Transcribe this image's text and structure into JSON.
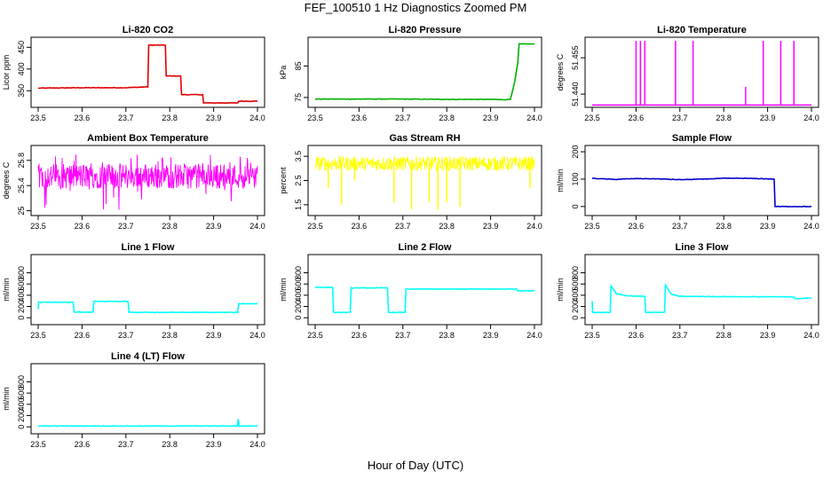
{
  "figure": {
    "title": "FEF_100510  1 Hz Diagnostics Zoomed PM",
    "xlabel": "Hour of Day (UTC)"
  },
  "chart_data": [
    {
      "type": "line",
      "title": "Li-820 CO2",
      "ylabel": "Licor ppm",
      "xlim": [
        23.5,
        24.0
      ],
      "ylim": [
        320,
        465
      ],
      "xticks": [
        23.5,
        23.6,
        23.7,
        23.8,
        23.9,
        24.0
      ],
      "yticks": [
        350,
        400,
        450
      ],
      "color": "#e00000",
      "series": [
        {
          "x": [
            23.5,
            23.6,
            23.7,
            23.75,
            23.752,
            23.79,
            23.792,
            23.825,
            23.827,
            23.875,
            23.877,
            23.955,
            23.957,
            24.0
          ],
          "values": [
            356,
            357,
            357,
            359,
            455,
            455,
            384,
            384,
            341,
            341,
            322,
            322,
            326,
            326
          ]
        }
      ]
    },
    {
      "type": "line",
      "title": "Li-820 Pressure",
      "ylabel": "kPa",
      "xlim": [
        23.5,
        24.0
      ],
      "ylim": [
        73,
        93
      ],
      "xticks": [
        23.5,
        23.6,
        23.7,
        23.8,
        23.9,
        24.0
      ],
      "yticks": [
        75,
        85
      ],
      "color": "#00b000",
      "series": [
        {
          "x": [
            23.5,
            23.6,
            23.7,
            23.8,
            23.9,
            23.93,
            23.945,
            23.955,
            23.962,
            23.965,
            24.0
          ],
          "values": [
            74.5,
            74.5,
            74.5,
            74.4,
            74.4,
            74.3,
            74.4,
            80,
            86,
            92,
            92
          ]
        }
      ]
    },
    {
      "type": "line",
      "title": "Li-820 Temperature",
      "ylabel": "degrees C",
      "xlim": [
        23.5,
        24.0
      ],
      "ylim": [
        51.436,
        51.462
      ],
      "xticks": [
        23.5,
        23.6,
        23.7,
        23.8,
        23.9,
        24.0
      ],
      "yticks": [
        51.44,
        51.455
      ],
      "yticklabels": [
        "51.440",
        "51.455"
      ],
      "color": "#ff00ff",
      "series": [
        {
          "baseline": 51.4355,
          "spikes_x": [
            23.6,
            23.61,
            23.62,
            23.69,
            23.73,
            23.89,
            23.93,
            23.96
          ],
          "spike_top": 51.462,
          "minor_spikes_x": [
            23.85
          ],
          "minor_top": 51.443
        }
      ]
    },
    {
      "type": "line",
      "title": "Ambient Box Temperature",
      "ylabel": "degrees C",
      "xlim": [
        23.5,
        24.0
      ],
      "ylim": [
        24.98,
        25.98
      ],
      "xticks": [
        23.5,
        23.6,
        23.7,
        23.8,
        23.9,
        24.0
      ],
      "yticks": [
        25.0,
        25.4,
        25.8
      ],
      "color": "#ff00ff",
      "series": [
        {
          "mean": 25.5,
          "band_low": 25.35,
          "band_high": 25.75,
          "min": 25.0,
          "max": 25.9
        }
      ]
    },
    {
      "type": "line",
      "title": "Gas Stream RH",
      "ylabel": "percent",
      "xlim": [
        23.5,
        24.0
      ],
      "ylim": [
        1.2,
        3.8
      ],
      "xticks": [
        23.5,
        23.6,
        23.7,
        23.8,
        23.9,
        24.0
      ],
      "yticks": [
        1.5,
        2.5,
        3.5
      ],
      "color": "#ffff00",
      "series": [
        {
          "mean": 3.2,
          "band_low": 2.9,
          "band_high": 3.5,
          "dips_x": [
            23.53,
            23.56,
            23.59,
            23.68,
            23.72,
            23.76,
            23.78,
            23.8,
            23.83,
            23.99
          ],
          "dips_y": [
            2.2,
            1.5,
            2.5,
            1.6,
            1.3,
            1.6,
            1.3,
            1.6,
            1.4,
            2.2
          ]
        }
      ]
    },
    {
      "type": "line",
      "title": "Sample Flow",
      "ylabel": "ml/min",
      "xlim": [
        23.5,
        24.0
      ],
      "ylim": [
        -20,
        210
      ],
      "xticks": [
        23.5,
        23.6,
        23.7,
        23.8,
        23.9,
        24.0
      ],
      "yticks": [
        0,
        100,
        200
      ],
      "color": "#0000cc",
      "series": [
        {
          "x": [
            23.5,
            23.55,
            23.6,
            23.65,
            23.7,
            23.75,
            23.8,
            23.85,
            23.9,
            23.915,
            23.917,
            24.0
          ],
          "values": [
            103,
            99,
            102,
            101,
            98,
            100,
            103,
            103,
            101,
            100,
            0,
            0
          ]
        }
      ]
    },
    {
      "type": "line",
      "title": "Line 1 Flow",
      "ylabel": "ml/min",
      "xlim": [
        23.5,
        24.0
      ],
      "ylim": [
        -60,
        1060
      ],
      "xticks": [
        23.5,
        23.6,
        23.7,
        23.8,
        23.9,
        24.0
      ],
      "yticks": [
        0,
        200,
        400,
        600,
        800
      ],
      "color": "#00ffff",
      "series": [
        {
          "x": [
            23.5,
            23.501,
            23.58,
            23.582,
            23.625,
            23.627,
            23.705,
            23.707,
            23.955,
            23.957,
            24.0
          ],
          "values": [
            150,
            275,
            275,
            100,
            100,
            290,
            290,
            95,
            95,
            250,
            250
          ]
        }
      ]
    },
    {
      "type": "line",
      "title": "Line 2 Flow",
      "ylabel": "ml/min",
      "xlim": [
        23.5,
        24.0
      ],
      "ylim": [
        -60,
        1060
      ],
      "xticks": [
        23.5,
        23.6,
        23.7,
        23.8,
        23.9,
        24.0
      ],
      "yticks": [
        0,
        200,
        400,
        600,
        800
      ],
      "color": "#00ffff",
      "series": [
        {
          "x": [
            23.5,
            23.54,
            23.542,
            23.58,
            23.582,
            23.665,
            23.667,
            23.705,
            23.707,
            23.96,
            23.962,
            24.0
          ],
          "values": [
            540,
            540,
            95,
            95,
            530,
            530,
            95,
            95,
            510,
            510,
            480,
            480
          ]
        }
      ]
    },
    {
      "type": "line",
      "title": "Line 3 Flow",
      "ylabel": "ml/min",
      "xlim": [
        23.5,
        24.0
      ],
      "ylim": [
        -60,
        1060
      ],
      "xticks": [
        23.5,
        23.6,
        23.7,
        23.8,
        23.9,
        24.0
      ],
      "yticks": [
        0,
        200,
        400,
        600,
        800
      ],
      "color": "#00ffff",
      "series": [
        {
          "x": [
            23.5,
            23.501,
            23.541,
            23.543,
            23.555,
            23.58,
            23.62,
            23.622,
            23.665,
            23.667,
            23.68,
            23.7,
            23.8,
            23.96,
            23.962,
            24.0
          ],
          "values": [
            300,
            95,
            95,
            570,
            430,
            390,
            380,
            95,
            95,
            580,
            420,
            380,
            375,
            370,
            340,
            350
          ]
        }
      ]
    },
    {
      "type": "line",
      "title": "Line 4 (LT) Flow",
      "ylabel": "ml/min",
      "xlim": [
        23.5,
        24.0
      ],
      "ylim": [
        -60,
        1060
      ],
      "xticks": [
        23.5,
        23.6,
        23.7,
        23.8,
        23.9,
        24.0
      ],
      "yticks": [
        0,
        200,
        400,
        600,
        800
      ],
      "color": "#00ffff",
      "series": [
        {
          "x": [
            23.5,
            23.95,
            23.954,
            23.956,
            23.958,
            24.0
          ],
          "values": [
            15,
            15,
            15,
            140,
            15,
            15
          ]
        }
      ]
    }
  ]
}
